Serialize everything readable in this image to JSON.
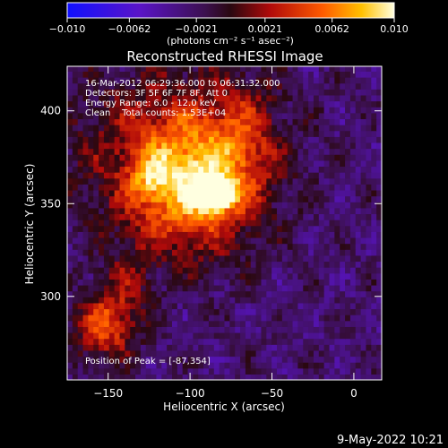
{
  "chart_data": {
    "type": "heatmap",
    "title": "Reconstructed RHESSI Image",
    "xlabel": "Heliocentric X (arcsec)",
    "ylabel": "Heliocentric Y (arcsec)",
    "xlim": [
      -175,
      17
    ],
    "ylim": [
      255,
      424
    ],
    "xticks": [
      -150,
      -100,
      -50,
      0
    ],
    "yticks": [
      300,
      350,
      400
    ],
    "colorbar": {
      "min": -0.01,
      "max": 0.01,
      "tick_values": [
        -0.01,
        -0.0062,
        -0.0021,
        0.0021,
        0.0062,
        0.01
      ],
      "tick_labels": [
        "−0.010",
        "−0.0062",
        "−0.0021",
        "0.0021",
        "0.0062",
        "0.010"
      ],
      "unit_label": "(photons cm⁻² s⁻¹ asec⁻²)",
      "colormap": "blue-purple-red-orange-yellow-white"
    },
    "annotations": [
      "16-Mar-2012 06:29:36.000 to 06:31:32.000",
      "Detectors: 3F 5F 6F 7F 8F, Att 0",
      "Energy Range: 6.0 - 12.0 keV",
      "Clean    Total counts: 1.53E+04"
    ],
    "peak": {
      "label": "Position of Peak = [-87,354]",
      "x": -87,
      "y": 354
    },
    "sources": [
      {
        "x": -87,
        "y": 354,
        "amplitude": 0.0105,
        "sx": 9,
        "sy": 6
      },
      {
        "x": -100,
        "y": 358,
        "amplitude": 0.0075,
        "sx": 26,
        "sy": 24
      },
      {
        "x": -112,
        "y": 378,
        "amplitude": 0.005,
        "sx": 40,
        "sy": 32
      },
      {
        "x": -68,
        "y": 385,
        "amplitude": 0.003,
        "sx": 14,
        "sy": 22
      },
      {
        "x": -125,
        "y": 362,
        "amplitude": 0.0035,
        "sx": 8,
        "sy": 8
      },
      {
        "x": -155,
        "y": 282,
        "amplitude": 0.0062,
        "sx": 12,
        "sy": 13
      },
      {
        "x": -140,
        "y": 300,
        "amplitude": 0.003,
        "sx": 12,
        "sy": 18
      }
    ],
    "background_level": -0.0025
  },
  "footer": {
    "timestamp": "9-May-2022 10:21"
  },
  "colors": {
    "background": "#000000",
    "text": "#ffffff"
  }
}
